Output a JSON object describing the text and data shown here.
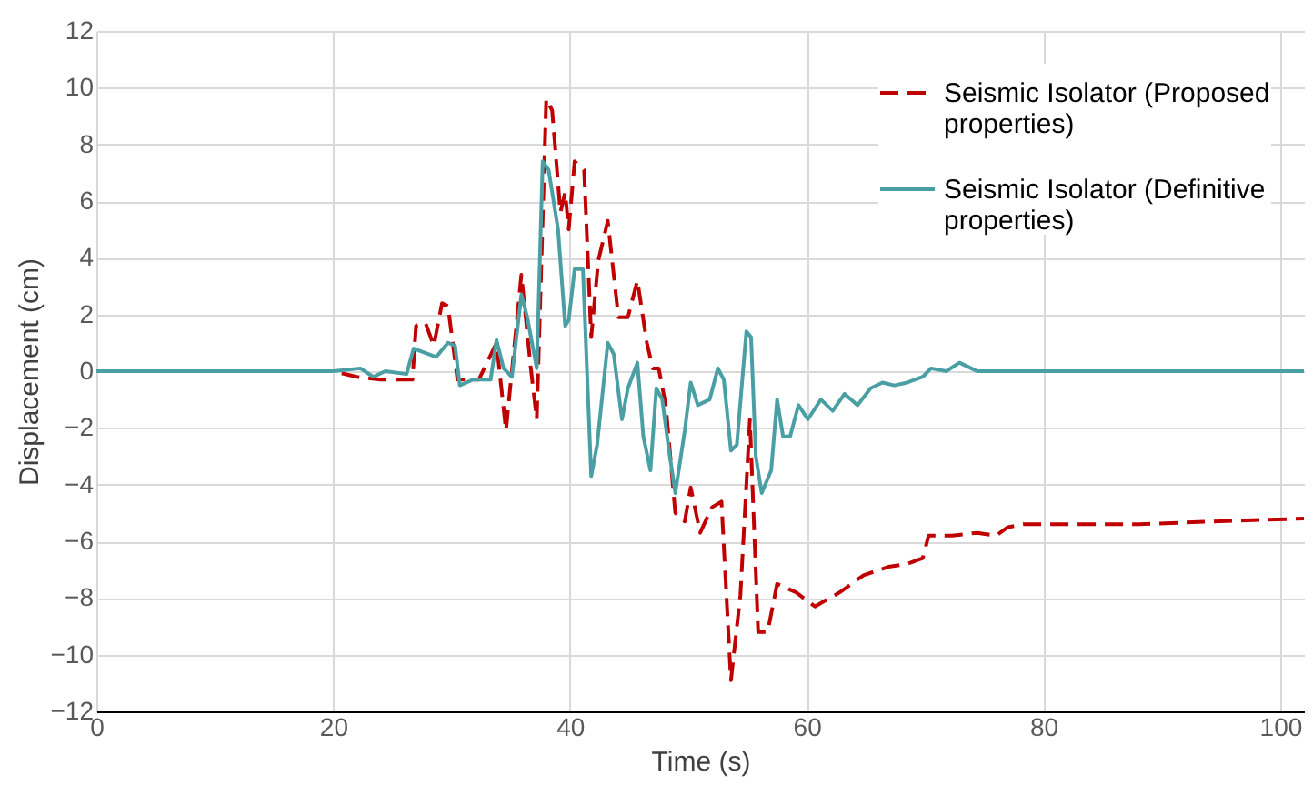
{
  "chart_data": {
    "type": "line",
    "xlabel": "Time (s)",
    "ylabel": "Displacement (cm)",
    "xlim": [
      0,
      102
    ],
    "xticks": [
      0,
      20,
      40,
      60,
      80,
      100
    ],
    "ylim": [
      -12,
      12
    ],
    "yticks": [
      -12,
      -10,
      -8,
      -6,
      -4,
      -2,
      0,
      2,
      4,
      6,
      8,
      10,
      12
    ],
    "grid": true,
    "legend": "top right",
    "series": [
      {
        "name": "Seismic Isolator (Proposed properties)",
        "color": "#c00000",
        "line_style": "dashed",
        "x": [
          0,
          10,
          20,
          22,
          24,
          26.7,
          27.0,
          27.8,
          28.5,
          29.2,
          29.7,
          30.5,
          32.3,
          33.8,
          34.6,
          35.9,
          36.7,
          37.2,
          38.0,
          38.5,
          39.2,
          39.6,
          39.9,
          40.4,
          41.2,
          41.8,
          42.4,
          43.2,
          44.1,
          44.9,
          45.7,
          46.5,
          47.0,
          47.5,
          48.1,
          48.9,
          49.7,
          50.2,
          51.0,
          52.0,
          52.8,
          53.6,
          54.4,
          55.2,
          55.9,
          56.7,
          57.5,
          59.1,
          60.7,
          62.8,
          64.8,
          66.9,
          68.5,
          69.8,
          70.3,
          72.3,
          74.4,
          76.0,
          77.0,
          78.3,
          88.1,
          94.4,
          102
        ],
        "values": [
          0,
          0,
          0,
          -0.2,
          -0.3,
          -0.3,
          1.6,
          1.7,
          0.9,
          2.4,
          2.3,
          -0.3,
          -0.3,
          1.0,
          -2.1,
          3.4,
          0.1,
          -1.7,
          9.6,
          9.2,
          5.6,
          6.3,
          5.0,
          7.4,
          7.1,
          1.2,
          3.9,
          5.3,
          1.9,
          1.9,
          3.2,
          1.0,
          0.1,
          0.1,
          -1.2,
          -5.0,
          -5.3,
          -4.1,
          -5.7,
          -4.8,
          -4.6,
          -10.9,
          -7.9,
          -1.7,
          -9.2,
          -9.2,
          -7.5,
          -7.8,
          -8.3,
          -7.8,
          -7.2,
          -6.9,
          -6.8,
          -6.6,
          -5.8,
          -5.8,
          -5.7,
          -5.8,
          -5.5,
          -5.4,
          -5.4,
          -5.3,
          -5.2
        ]
      },
      {
        "name": "Seismic Isolator (Definitive properties)",
        "color": "#4a9fa5",
        "line_style": "solid",
        "x": [
          0,
          10,
          20,
          22.3,
          23.4,
          24.4,
          26.2,
          26.8,
          28.7,
          29.7,
          30.3,
          30.7,
          31.8,
          33.3,
          33.8,
          34.4,
          35.1,
          35.9,
          36.4,
          37.2,
          37.7,
          38.2,
          39.0,
          39.6,
          39.9,
          40.4,
          41.1,
          41.8,
          42.3,
          43.2,
          43.7,
          44.4,
          44.9,
          45.7,
          46.2,
          46.8,
          47.3,
          47.8,
          48.3,
          48.9,
          49.7,
          50.2,
          50.8,
          51.8,
          52.5,
          53.0,
          53.6,
          54.1,
          54.9,
          55.3,
          55.7,
          56.2,
          57.0,
          57.5,
          58.0,
          58.6,
          59.3,
          60.1,
          61.2,
          62.2,
          63.2,
          64.3,
          65.4,
          66.4,
          67.4,
          68.5,
          69.8,
          70.5,
          71.8,
          72.9,
          73.9,
          74.4,
          85,
          102
        ],
        "values": [
          0,
          0,
          0,
          0.1,
          -0.2,
          0,
          -0.1,
          0.8,
          0.5,
          1.0,
          0.9,
          -0.5,
          -0.3,
          -0.3,
          1.1,
          0.1,
          -0.2,
          2.7,
          1.9,
          0.1,
          7.4,
          7.1,
          5.0,
          1.6,
          1.8,
          3.6,
          3.6,
          -3.7,
          -2.6,
          1.0,
          0.6,
          -1.7,
          -0.6,
          0.3,
          -2.3,
          -3.5,
          -0.6,
          -1.0,
          -2.6,
          -4.3,
          -2.1,
          -0.4,
          -1.2,
          -1.0,
          0.1,
          -0.3,
          -2.8,
          -2.6,
          1.4,
          1.2,
          -3.0,
          -4.3,
          -3.5,
          -1.0,
          -2.3,
          -2.3,
          -1.2,
          -1.7,
          -1.0,
          -1.4,
          -0.8,
          -1.2,
          -0.6,
          -0.4,
          -0.5,
          -0.4,
          -0.2,
          0.1,
          0.0,
          0.3,
          0.1,
          0,
          0,
          0
        ]
      }
    ]
  }
}
